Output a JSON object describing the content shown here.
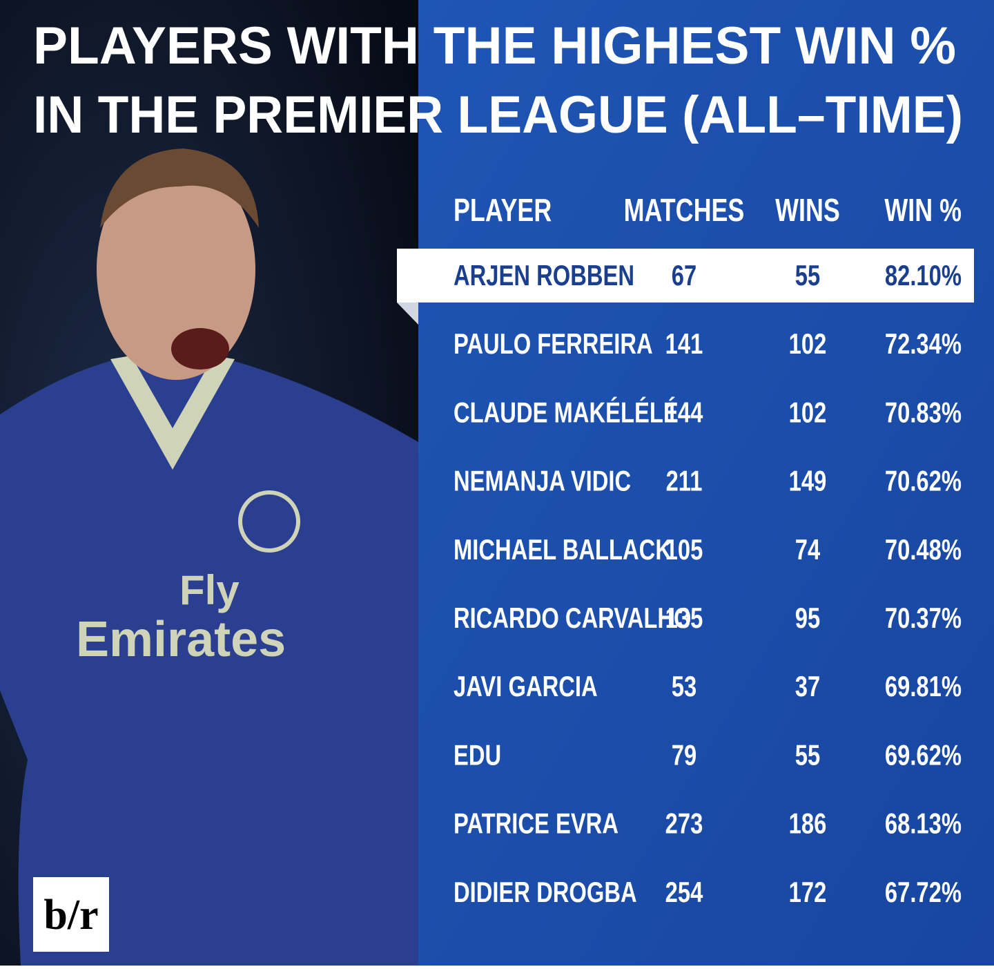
{
  "header": {
    "title": [
      "PLAYERS WITH THE HIGHEST WIN %",
      "IN THE PREMIER LEAGUE (ALL–TIME)"
    ]
  },
  "table": {
    "columns": [
      "PLAYER",
      "MATCHES",
      "WINS",
      "WIN %"
    ],
    "rows": [
      [
        "ARJEN ROBBEN",
        "67",
        "55",
        "82.10%"
      ],
      [
        "PAULO FERREIRA",
        "141",
        "102",
        "72.34%"
      ],
      [
        "CLAUDE MAKÉLÉLÉ",
        "144",
        "102",
        "70.83%"
      ],
      [
        "NEMANJA VIDIC",
        "211",
        "149",
        "70.62%"
      ],
      [
        "MICHAEL BALLACK",
        "105",
        "74",
        "70.48%"
      ],
      [
        "RICARDO CARVALHO",
        "135",
        "95",
        "70.37%"
      ],
      [
        "JAVI GARCIA",
        "53",
        "37",
        "69.81%"
      ],
      [
        "EDU",
        "79",
        "55",
        "69.62%"
      ],
      [
        "PATRICE EVRA",
        "273",
        "186",
        "68.13%"
      ],
      [
        "DIDIER DROGBA",
        "254",
        "172",
        "67.72%"
      ]
    ]
  },
  "logo": "b/r"
}
